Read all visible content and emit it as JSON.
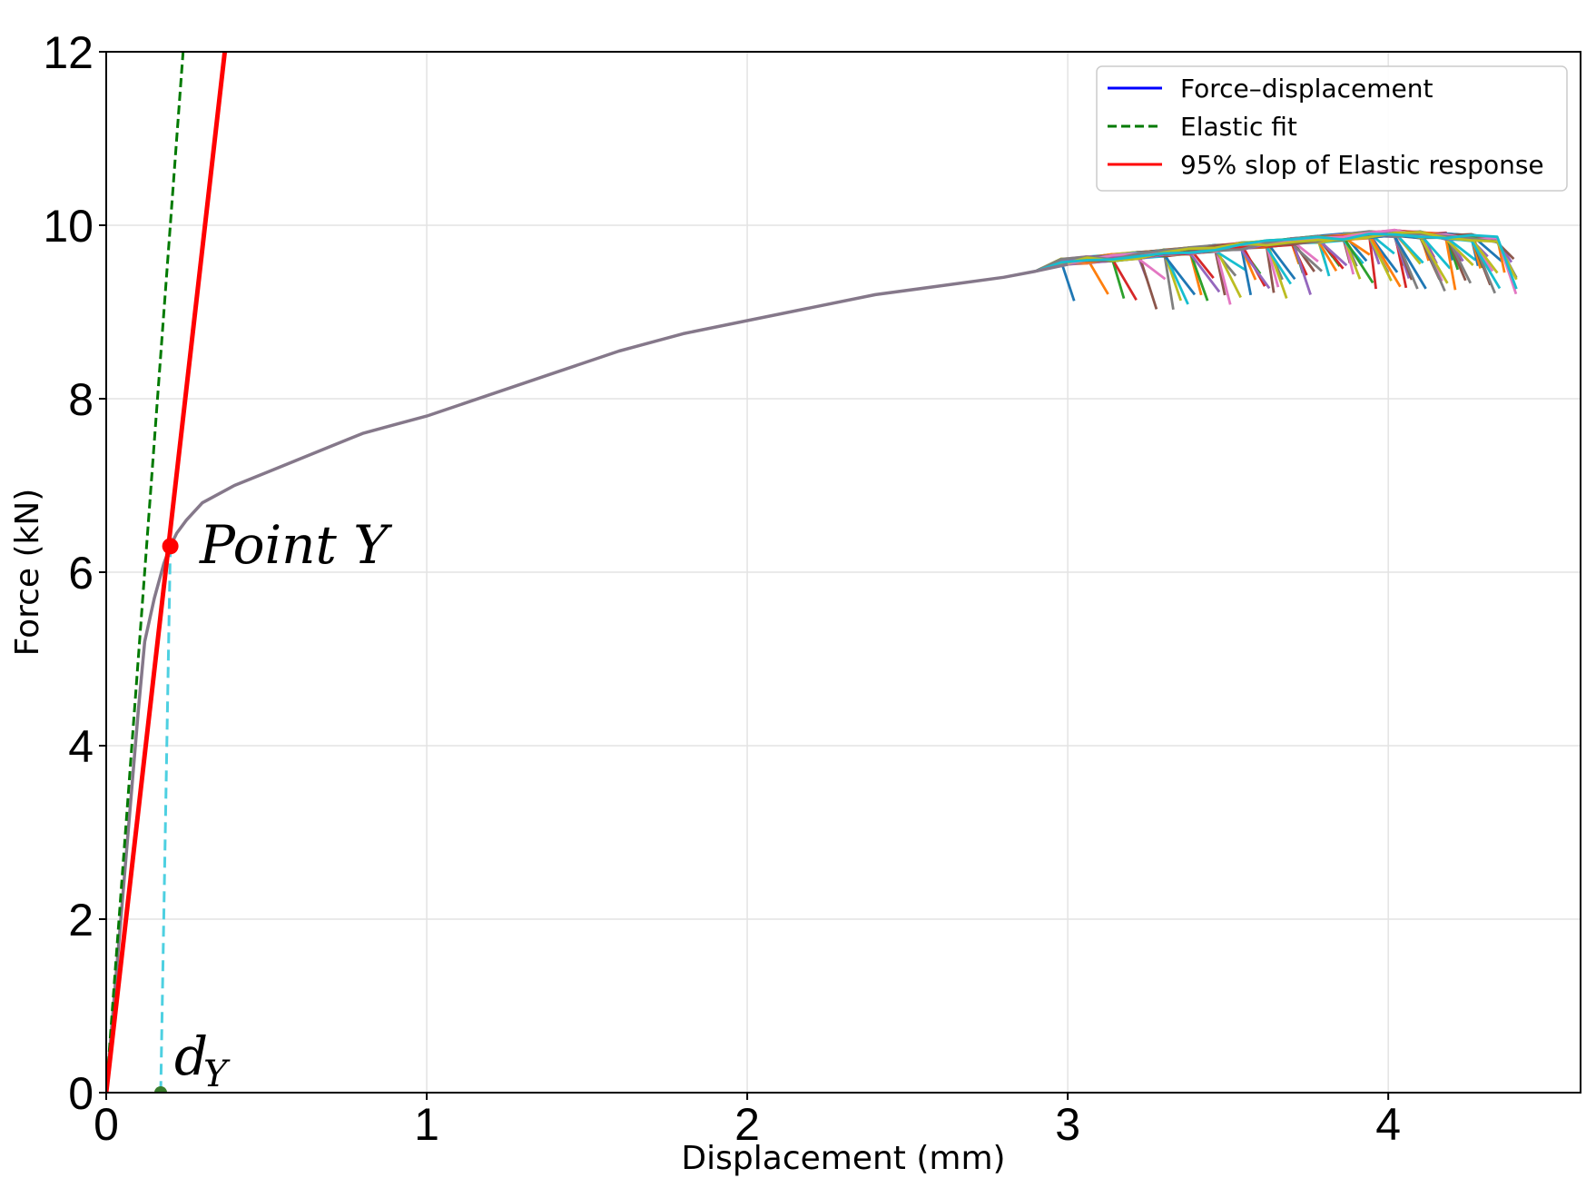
{
  "chart_data": {
    "type": "line",
    "title": "",
    "xlabel": "Displacement (mm)",
    "ylabel": "Force (kN)",
    "xlim": [
      0,
      4.6
    ],
    "ylim": [
      0,
      12
    ],
    "xticks": [
      0,
      1,
      2,
      3,
      4
    ],
    "yticks": [
      0,
      2,
      4,
      6,
      8,
      10,
      12
    ],
    "grid": true,
    "legend_position": "top-right",
    "colors": {
      "force_displacement": "#0000ff",
      "elastic_fit": "#007a00",
      "slope_95": "#ff0000",
      "projection": "#4dd0e1",
      "dy_marker": "#3a7d2c",
      "curve_trunk": "#85788a"
    },
    "legend": [
      {
        "name": "Force–displacement",
        "style": "solid",
        "color": "#0000ff"
      },
      {
        "name": "Elastic fit",
        "style": "dashed",
        "color": "#007a00"
      },
      {
        "name": "95% slop of Elastic response",
        "style": "solid",
        "color": "#ff0000"
      }
    ],
    "series": [
      {
        "name": "Force–displacement",
        "x": [
          0,
          0.05,
          0.1,
          0.12,
          0.15,
          0.18,
          0.2,
          0.22,
          0.25,
          0.3,
          0.4,
          0.5,
          0.6,
          0.7,
          0.8,
          0.9,
          1.0,
          1.2,
          1.4,
          1.6,
          1.8,
          2.0,
          2.2,
          2.4,
          2.6,
          2.8,
          2.9,
          3.0
        ],
        "y": [
          0,
          2.2,
          4.4,
          5.2,
          5.7,
          6.1,
          6.3,
          6.45,
          6.6,
          6.8,
          7.0,
          7.15,
          7.3,
          7.45,
          7.6,
          7.7,
          7.8,
          8.05,
          8.3,
          8.55,
          8.75,
          8.9,
          9.05,
          9.2,
          9.3,
          9.4,
          9.47,
          9.55
        ]
      },
      {
        "name": "Elastic fit",
        "x": [
          0,
          0.24
        ],
        "y": [
          0,
          12
        ]
      },
      {
        "name": "95% slop of Elastic response",
        "x": [
          0,
          0.37
        ],
        "y": [
          0,
          12
        ]
      }
    ],
    "point_y": {
      "x": 0.2,
      "y": 6.3,
      "label": "Point Y"
    },
    "d_y": {
      "x": 0.17,
      "y": 0,
      "label": "d",
      "subscript": "Y"
    }
  }
}
